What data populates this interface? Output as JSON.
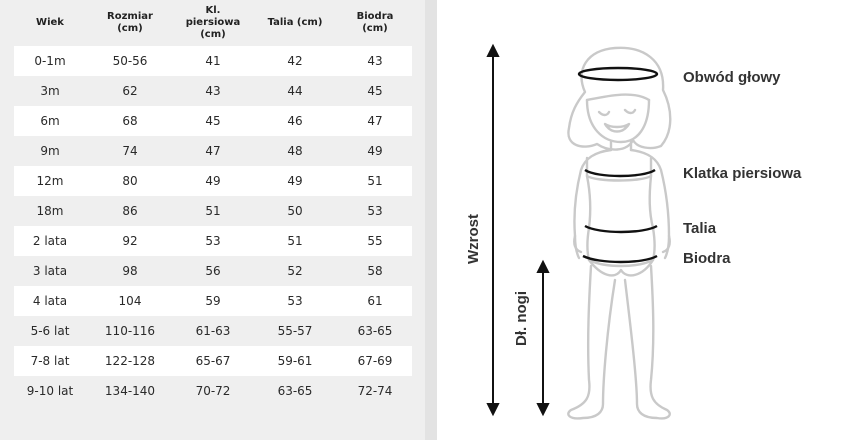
{
  "table": {
    "headers": [
      "Wiek",
      "Rozmiar\n(cm)",
      "Kl.\npiersiowa\n(cm)",
      "Talia (cm)",
      "Biodra\n(cm)"
    ],
    "rows": [
      [
        "0-1m",
        "50-56",
        "41",
        "42",
        "43"
      ],
      [
        "3m",
        "62",
        "43",
        "44",
        "45"
      ],
      [
        "6m",
        "68",
        "45",
        "46",
        "47"
      ],
      [
        "9m",
        "74",
        "47",
        "48",
        "49"
      ],
      [
        "12m",
        "80",
        "49",
        "49",
        "51"
      ],
      [
        "18m",
        "86",
        "51",
        "50",
        "53"
      ],
      [
        "2 lata",
        "92",
        "53",
        "51",
        "55"
      ],
      [
        "3 lata",
        "98",
        "56",
        "52",
        "58"
      ],
      [
        "4 lata",
        "104",
        "59",
        "53",
        "61"
      ],
      [
        "5-6 lat",
        "110-116",
        "61-63",
        "55-57",
        "63-65"
      ],
      [
        "7-8 lat",
        "122-128",
        "65-67",
        "59-61",
        "67-69"
      ],
      [
        "9-10 lat",
        "134-140",
        "70-72",
        "63-65",
        "72-74"
      ]
    ]
  },
  "figure": {
    "labels": {
      "head": "Obwód głowy",
      "chest": "Klatka piersiowa",
      "waist": "Talia",
      "hips": "Biodra",
      "height": "Wzrost",
      "leg": "Dł. nogi"
    }
  }
}
